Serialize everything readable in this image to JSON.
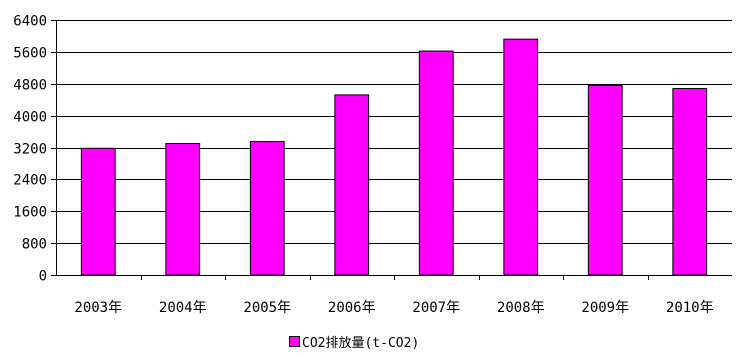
{
  "chart_data": {
    "type": "bar",
    "categories": [
      "2003年",
      "2004年",
      "2005年",
      "2006年",
      "2007年",
      "2008年",
      "2009年",
      "2010年"
    ],
    "series": [
      {
        "name": "CO2排放量(t-CO2)",
        "values": [
          3180,
          3300,
          3350,
          4520,
          5620,
          5920,
          4760,
          4680
        ]
      }
    ],
    "ylim": [
      0,
      6400
    ],
    "yticks": [
      0,
      800,
      1600,
      2400,
      3200,
      4000,
      4800,
      5600,
      6400
    ],
    "grid": true,
    "legend_position": "bottom",
    "colors": {
      "bar_fill": "#ff00ff",
      "bar_stroke": "#000000",
      "grid": "#000000"
    }
  }
}
